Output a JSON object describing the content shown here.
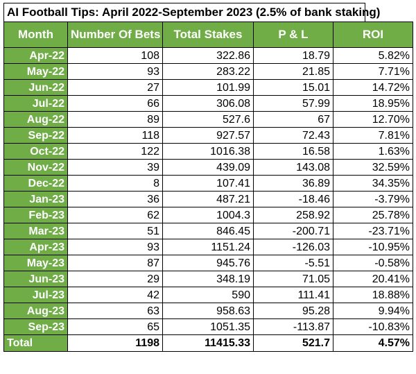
{
  "title": "AI Football Tips: April 2022-September 2023 (2.5% of bank staking)",
  "headers": [
    "Month",
    "Number Of Bets",
    "Total Stakes",
    "P & L",
    "ROI"
  ],
  "rows": [
    {
      "month": "Apr-22",
      "bets": "108",
      "stakes": "322.86",
      "pl": "18.79",
      "roi": "5.82%"
    },
    {
      "month": "May-22",
      "bets": "93",
      "stakes": "283.22",
      "pl": "21.85",
      "roi": "7.71%"
    },
    {
      "month": "Jun-22",
      "bets": "27",
      "stakes": "101.99",
      "pl": "15.01",
      "roi": "14.72%"
    },
    {
      "month": "Jul-22",
      "bets": "66",
      "stakes": "306.08",
      "pl": "57.99",
      "roi": "18.95%"
    },
    {
      "month": "Aug-22",
      "bets": "89",
      "stakes": "527.6",
      "pl": "67",
      "roi": "12.70%"
    },
    {
      "month": "Sep-22",
      "bets": "118",
      "stakes": "927.57",
      "pl": "72.43",
      "roi": "7.81%"
    },
    {
      "month": "Oct-22",
      "bets": "122",
      "stakes": "1016.38",
      "pl": "16.58",
      "roi": "1.63%"
    },
    {
      "month": "Nov-22",
      "bets": "39",
      "stakes": "439.09",
      "pl": "143.08",
      "roi": "32.59%"
    },
    {
      "month": "Dec-22",
      "bets": "8",
      "stakes": "107.41",
      "pl": "36.89",
      "roi": "34.35%"
    },
    {
      "month": "Jan-23",
      "bets": "36",
      "stakes": "487.21",
      "pl": "-18.46",
      "roi": "-3.79%"
    },
    {
      "month": "Feb-23",
      "bets": "62",
      "stakes": "1004.3",
      "pl": "258.92",
      "roi": "25.78%"
    },
    {
      "month": "Mar-23",
      "bets": "51",
      "stakes": "846.45",
      "pl": "-200.71",
      "roi": "-23.71%"
    },
    {
      "month": "Apr-23",
      "bets": "93",
      "stakes": "1151.24",
      "pl": "-126.03",
      "roi": "-10.95%"
    },
    {
      "month": "May-23",
      "bets": "87",
      "stakes": "945.76",
      "pl": "-5.51",
      "roi": "-0.58%"
    },
    {
      "month": "Jun-23",
      "bets": "29",
      "stakes": "348.19",
      "pl": "71.05",
      "roi": "20.41%"
    },
    {
      "month": "Jul-23",
      "bets": "42",
      "stakes": "590",
      "pl": "111.41",
      "roi": "18.88%"
    },
    {
      "month": "Aug-23",
      "bets": "63",
      "stakes": "958.63",
      "pl": "95.28",
      "roi": "9.94%"
    },
    {
      "month": "Sep-23",
      "bets": "65",
      "stakes": "1051.35",
      "pl": "-113.87",
      "roi": "-10.83%"
    }
  ],
  "total": {
    "month": "Total",
    "bets": "1198",
    "stakes": "11415.33",
    "pl": "521.7",
    "roi": "4.57%"
  },
  "colors": {
    "header_green": "#70ad47",
    "header_text": "#ffffff",
    "border": "#000000"
  }
}
